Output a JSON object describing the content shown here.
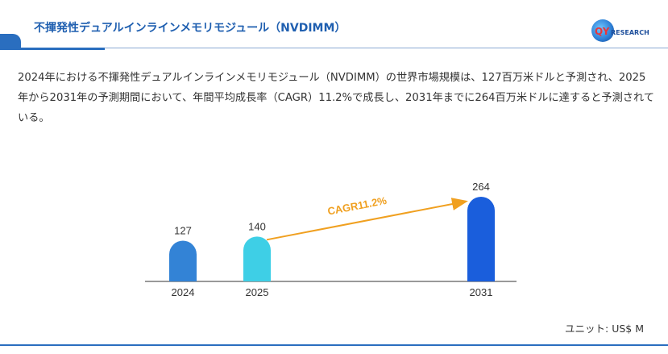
{
  "header": {
    "title": "不揮発性デュアルインラインメモリモジュール（NVDIMM）",
    "logo_main": "QY",
    "logo_rest": "RESEARCH"
  },
  "description": "2024年における不揮発性デュアルインラインメモリモジュール（NVDIMM）の世界市場規模は、127百万米ドルと予測され、2025年から2031年の予測期間において、年間平均成長率（CAGR）11.2%で成長し、2031年までに264百万米ドルに達すると予測されている。",
  "unit_label": "ユニット: US$ M",
  "colors": {
    "accent": "#2a6ebf",
    "arrow": "#f0a020"
  },
  "chart_data": {
    "type": "bar",
    "categories": [
      "2024",
      "2025",
      "2031"
    ],
    "values": [
      127,
      140,
      264
    ],
    "value_labels": [
      "127",
      "140",
      "264"
    ],
    "colors": [
      "#3383d6",
      "#3ecfe6",
      "#1a5edc"
    ],
    "annotation": {
      "text": "CAGR11.2%",
      "from_category": "2025",
      "to_category": "2031"
    },
    "ylim": [
      0,
      264
    ],
    "title": "",
    "xlabel": "",
    "ylabel": ""
  }
}
